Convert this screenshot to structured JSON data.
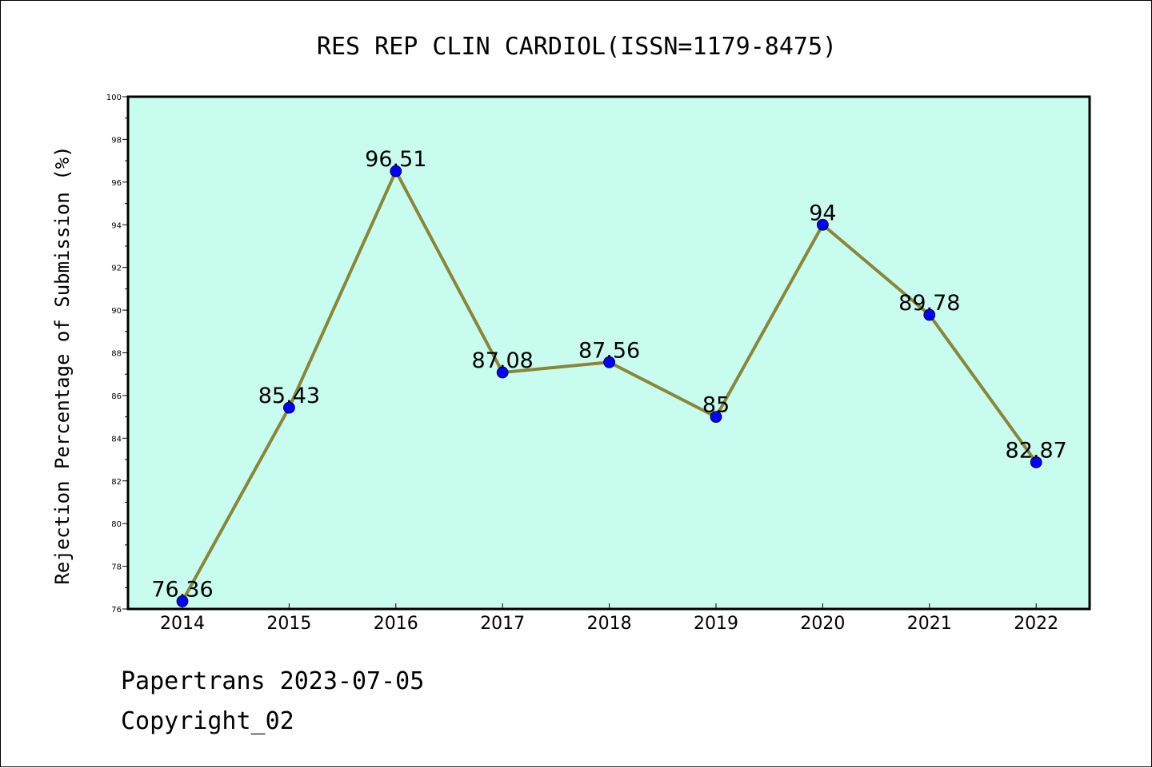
{
  "chart_data": {
    "type": "line",
    "title": "RES REP CLIN CARDIOL(ISSN=1179-8475)",
    "ylabel": "Rejection Percentage of Submission (%)",
    "xlabel": "",
    "categories": [
      "2014",
      "2015",
      "2016",
      "2017",
      "2018",
      "2019",
      "2020",
      "2021",
      "2022"
    ],
    "series": [
      {
        "values": [
          76.36,
          85.43,
          96.51,
          87.08,
          87.56,
          85,
          94,
          89.78,
          82.87
        ],
        "labels": [
          "76.36",
          "85.43",
          "96.51",
          "87.08",
          "87.56",
          "85",
          "94",
          "89.78",
          "82.87"
        ]
      }
    ],
    "ylim": [
      76,
      100
    ],
    "yticks": [
      76,
      78,
      80,
      82,
      84,
      86,
      88,
      90,
      92,
      94,
      96,
      98,
      100
    ],
    "grid": false,
    "legend": "none",
    "colors": {
      "plot_background": "#c8fcee",
      "line": "#8a8638",
      "marker": "#0000ff",
      "axis": "#000000"
    }
  },
  "footer": {
    "line1": "Papertrans 2023-07-05",
    "line2": "Copyright_02"
  }
}
